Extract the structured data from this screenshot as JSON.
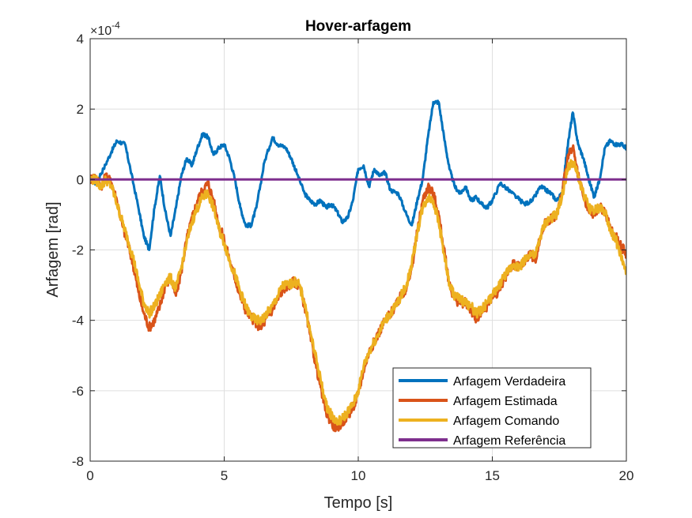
{
  "chart_data": {
    "type": "line",
    "title": "Hover-arfagem",
    "xlabel": "Tempo [s]",
    "ylabel": "Arfagem [rad]",
    "y_exponent_label": "×10",
    "y_exponent_power": "-4",
    "y_scale": 0.0001,
    "xlim": [
      0,
      20
    ],
    "ylim": [
      -8,
      4
    ],
    "x_ticks": [
      0,
      5,
      10,
      15,
      20
    ],
    "y_ticks": [
      -8,
      -6,
      -4,
      -2,
      0,
      2,
      4
    ],
    "x_tick_labels": [
      "0",
      "5",
      "10",
      "15",
      "20"
    ],
    "y_tick_labels": [
      "-8",
      "-6",
      "-4",
      "-2",
      "0",
      "2",
      "4"
    ],
    "grid": true,
    "legend_position": "bottom-right",
    "series": [
      {
        "name": "Arfagem Verdadeira",
        "color": "#0072BD",
        "x": [
          0,
          0.2,
          0.5,
          0.8,
          1.0,
          1.3,
          1.5,
          1.8,
          2.0,
          2.2,
          2.4,
          2.6,
          2.8,
          3.0,
          3.2,
          3.4,
          3.6,
          3.8,
          4.0,
          4.2,
          4.4,
          4.6,
          4.8,
          5.0,
          5.2,
          5.4,
          5.6,
          5.8,
          6.0,
          6.2,
          6.5,
          6.8,
          7.0,
          7.3,
          7.5,
          7.7,
          8.0,
          8.2,
          8.4,
          8.6,
          8.8,
          9.0,
          9.2,
          9.4,
          9.6,
          9.8,
          10.0,
          10.2,
          10.4,
          10.6,
          10.8,
          11.0,
          11.2,
          11.5,
          11.8,
          12.0,
          12.2,
          12.4,
          12.6,
          12.8,
          13.0,
          13.2,
          13.4,
          13.6,
          13.8,
          14.0,
          14.2,
          14.4,
          14.6,
          14.8,
          15.0,
          15.3,
          15.6,
          15.9,
          16.2,
          16.5,
          16.8,
          17.0,
          17.2,
          17.4,
          17.6,
          17.8,
          18.0,
          18.2,
          18.4,
          18.6,
          18.8,
          19.0,
          19.2,
          19.4,
          19.6,
          19.8,
          20.0
        ],
        "values": [
          0.0,
          -0.1,
          0.3,
          0.8,
          1.1,
          1.0,
          0.3,
          -0.8,
          -1.6,
          -2.0,
          -0.8,
          0.1,
          -0.9,
          -1.6,
          -0.8,
          0.1,
          0.6,
          0.4,
          0.9,
          1.3,
          1.2,
          0.7,
          0.9,
          1.0,
          0.6,
          0.0,
          -0.8,
          -1.3,
          -1.3,
          -0.8,
          0.5,
          1.2,
          1.0,
          0.9,
          0.6,
          0.2,
          -0.4,
          -0.6,
          -0.7,
          -0.6,
          -0.8,
          -0.7,
          -0.9,
          -1.2,
          -1.1,
          -0.6,
          0.3,
          0.4,
          -0.2,
          0.3,
          0.1,
          0.2,
          -0.3,
          -0.4,
          -1.0,
          -1.3,
          -0.6,
          0.0,
          1.2,
          2.2,
          2.2,
          1.2,
          0.3,
          -0.2,
          -0.4,
          -0.2,
          -0.6,
          -0.5,
          -0.7,
          -0.8,
          -0.6,
          -0.1,
          -0.3,
          -0.5,
          -0.7,
          -0.6,
          -0.2,
          -0.3,
          -0.4,
          -0.6,
          -0.4,
          0.9,
          1.9,
          1.0,
          0.6,
          0.0,
          -0.5,
          0.0,
          0.9,
          1.1,
          1.0,
          1.0,
          0.9
        ]
      },
      {
        "name": "Arfagem Estimada",
        "color": "#D95319",
        "x": [
          0,
          0.2,
          0.4,
          0.6,
          0.8,
          1.0,
          1.2,
          1.4,
          1.6,
          1.8,
          2.0,
          2.2,
          2.4,
          2.6,
          2.8,
          3.0,
          3.2,
          3.4,
          3.6,
          3.8,
          4.0,
          4.2,
          4.4,
          4.6,
          4.8,
          5.0,
          5.2,
          5.4,
          5.6,
          5.8,
          6.0,
          6.2,
          6.4,
          6.6,
          6.8,
          7.0,
          7.2,
          7.4,
          7.6,
          7.8,
          8.0,
          8.2,
          8.4,
          8.6,
          8.8,
          9.0,
          9.2,
          9.4,
          9.6,
          9.8,
          10.0,
          10.2,
          10.4,
          10.6,
          10.8,
          11.0,
          11.2,
          11.4,
          11.6,
          11.8,
          12.0,
          12.2,
          12.4,
          12.6,
          12.8,
          13.0,
          13.2,
          13.4,
          13.6,
          13.8,
          14.0,
          14.2,
          14.4,
          14.6,
          14.8,
          15.0,
          15.2,
          15.4,
          15.6,
          15.8,
          16.0,
          16.2,
          16.4,
          16.6,
          16.8,
          17.0,
          17.2,
          17.4,
          17.6,
          17.8,
          18.0,
          18.2,
          18.4,
          18.6,
          18.8,
          19.0,
          19.2,
          19.4,
          19.6,
          19.8,
          20.0
        ],
        "values": [
          0.0,
          0.1,
          -0.2,
          0.1,
          -0.1,
          -0.6,
          -1.3,
          -1.8,
          -2.4,
          -3.2,
          -3.8,
          -4.2,
          -4.0,
          -3.6,
          -3.0,
          -2.8,
          -3.3,
          -2.6,
          -1.7,
          -1.1,
          -0.6,
          -0.3,
          -0.1,
          -0.6,
          -1.3,
          -1.7,
          -2.3,
          -2.8,
          -3.3,
          -3.7,
          -3.9,
          -4.1,
          -4.2,
          -3.9,
          -3.7,
          -3.4,
          -3.1,
          -3.0,
          -2.9,
          -3.0,
          -3.6,
          -4.4,
          -5.2,
          -5.9,
          -6.6,
          -6.9,
          -7.1,
          -6.9,
          -6.7,
          -6.5,
          -6.1,
          -5.4,
          -4.9,
          -4.6,
          -4.3,
          -4.0,
          -3.8,
          -3.6,
          -3.3,
          -3.1,
          -2.5,
          -1.5,
          -0.6,
          -0.2,
          -0.4,
          -1.0,
          -2.0,
          -3.0,
          -3.4,
          -3.5,
          -3.5,
          -3.7,
          -4.0,
          -3.8,
          -3.6,
          -3.3,
          -3.2,
          -2.9,
          -2.6,
          -2.4,
          -2.5,
          -2.3,
          -2.1,
          -2.3,
          -1.6,
          -1.2,
          -1.1,
          -1.0,
          -0.4,
          0.6,
          0.9,
          0.1,
          -0.5,
          -0.9,
          -1.0,
          -0.8,
          -0.9,
          -1.4,
          -1.6,
          -1.9,
          -2.1
        ]
      },
      {
        "name": "Arfagem Comando",
        "color": "#EDB120",
        "x": [
          0,
          0.2,
          0.4,
          0.6,
          0.8,
          1.0,
          1.2,
          1.4,
          1.6,
          1.8,
          2.0,
          2.2,
          2.4,
          2.6,
          2.8,
          3.0,
          3.2,
          3.4,
          3.6,
          3.8,
          4.0,
          4.2,
          4.4,
          4.6,
          4.8,
          5.0,
          5.2,
          5.4,
          5.6,
          5.8,
          6.0,
          6.2,
          6.4,
          6.6,
          6.8,
          7.0,
          7.2,
          7.4,
          7.6,
          7.8,
          8.0,
          8.2,
          8.4,
          8.6,
          8.8,
          9.0,
          9.2,
          9.4,
          9.6,
          9.8,
          10.0,
          10.2,
          10.4,
          10.6,
          10.8,
          11.0,
          11.2,
          11.4,
          11.6,
          11.8,
          12.0,
          12.2,
          12.4,
          12.6,
          12.8,
          13.0,
          13.2,
          13.4,
          13.6,
          13.8,
          14.0,
          14.2,
          14.4,
          14.6,
          14.8,
          15.0,
          15.2,
          15.4,
          15.6,
          15.8,
          16.0,
          16.2,
          16.4,
          16.6,
          16.8,
          17.0,
          17.2,
          17.4,
          17.6,
          17.8,
          18.0,
          18.2,
          18.4,
          18.6,
          18.8,
          19.0,
          19.2,
          19.4,
          19.6,
          19.8,
          20.0
        ],
        "values": [
          0.0,
          0.0,
          -0.2,
          0.0,
          -0.2,
          -0.7,
          -1.2,
          -1.7,
          -2.2,
          -2.9,
          -3.5,
          -3.8,
          -3.6,
          -3.3,
          -2.9,
          -2.8,
          -3.1,
          -2.5,
          -1.8,
          -1.2,
          -0.8,
          -0.5,
          -0.4,
          -0.8,
          -1.4,
          -1.8,
          -2.3,
          -2.7,
          -3.2,
          -3.6,
          -3.9,
          -4.0,
          -4.0,
          -3.8,
          -3.6,
          -3.3,
          -3.0,
          -3.0,
          -2.9,
          -3.0,
          -3.5,
          -4.3,
          -5.0,
          -5.7,
          -6.4,
          -6.7,
          -6.9,
          -6.8,
          -6.6,
          -6.4,
          -6.0,
          -5.3,
          -4.9,
          -4.6,
          -4.3,
          -4.0,
          -3.8,
          -3.6,
          -3.3,
          -3.0,
          -2.4,
          -1.5,
          -0.8,
          -0.5,
          -0.6,
          -1.2,
          -2.1,
          -3.0,
          -3.3,
          -3.4,
          -3.5,
          -3.6,
          -3.8,
          -3.7,
          -3.5,
          -3.3,
          -3.1,
          -2.8,
          -2.6,
          -2.4,
          -2.5,
          -2.3,
          -2.1,
          -2.2,
          -1.6,
          -1.2,
          -1.1,
          -1.0,
          -0.5,
          0.3,
          0.5,
          0.1,
          -0.4,
          -0.8,
          -0.9,
          -0.8,
          -0.9,
          -1.4,
          -1.7,
          -2.2,
          -2.7
        ]
      },
      {
        "name": "Arfagem Referência",
        "color": "#7E2F8E",
        "x": [
          0,
          20
        ],
        "values": [
          0,
          0
        ]
      }
    ]
  }
}
